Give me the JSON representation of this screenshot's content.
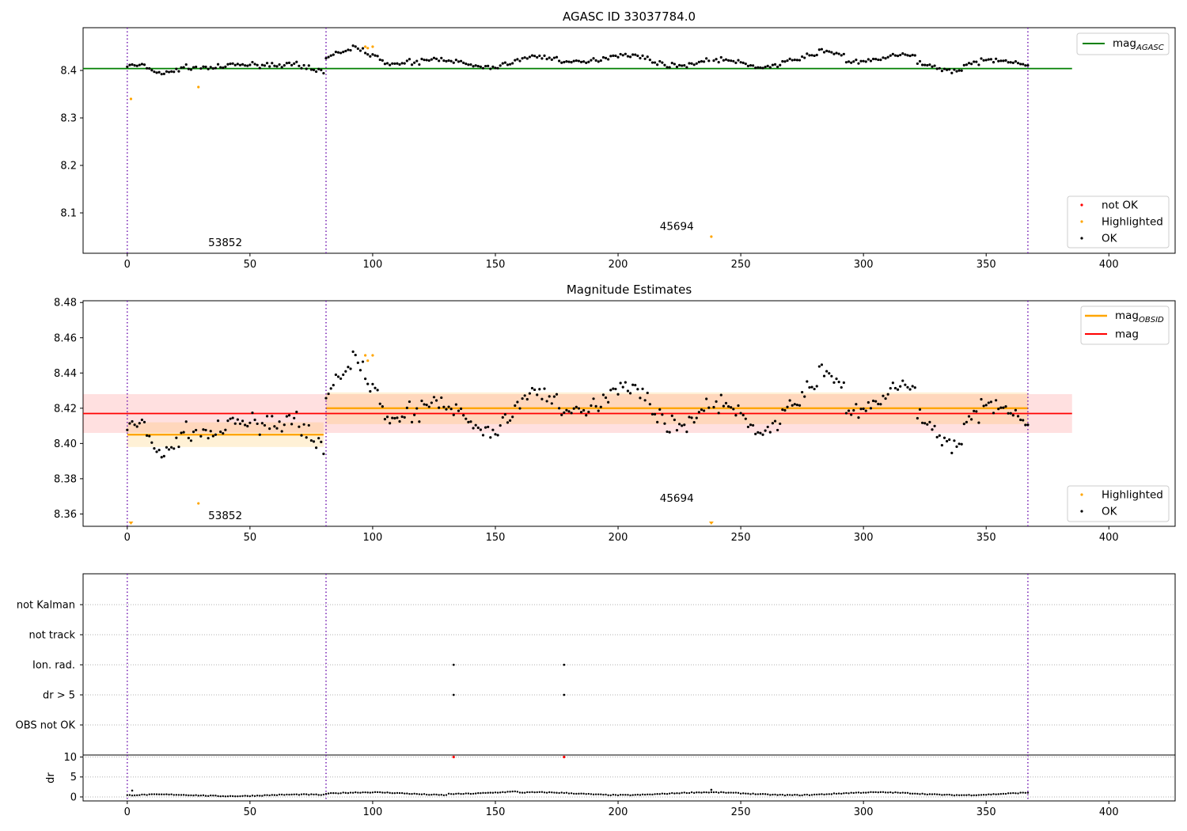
{
  "chart_data": [
    {
      "type": "scatter",
      "title": "AGASC ID 33037784.0",
      "xlim": [
        -18,
        427
      ],
      "ylim": [
        8.015,
        8.49
      ],
      "xticks": [
        0,
        50,
        100,
        150,
        200,
        250,
        300,
        350,
        400
      ],
      "yticks": [
        8.1,
        8.2,
        8.3,
        8.4
      ],
      "ytick_labels": [
        "8.1",
        "8.2",
        "8.3",
        "8.4"
      ],
      "obs_boundaries": [
        0,
        81,
        367
      ],
      "annotations": [
        {
          "text": "53852",
          "x": 33,
          "y": 8.03
        },
        {
          "text": "45694",
          "x": 217,
          "y": 8.064
        }
      ],
      "mag_agasc": {
        "label": "mag",
        "subscript": "AGASC",
        "value": 8.404,
        "x_range": [
          -18,
          385
        ],
        "color": "#008000"
      },
      "series": [
        {
          "name": "not OK",
          "color": "#ff0000",
          "x": [],
          "y": []
        },
        {
          "name": "Highlighted",
          "color": "#ffa500",
          "x": [
            1.5,
            29,
            97,
            98,
            100,
            238
          ],
          "y": [
            8.34,
            8.365,
            8.45,
            8.447,
            8.45,
            8.05
          ]
        },
        {
          "name": "OK",
          "color": "#000000",
          "x": [],
          "y": []
        }
      ],
      "legend_line_position": "upper right",
      "legend_points_position": "lower right"
    },
    {
      "type": "scatter",
      "title": "Magnitude Estimates",
      "xlim": [
        -18,
        427
      ],
      "ylim": [
        8.353,
        8.481
      ],
      "xticks": [
        0,
        50,
        100,
        150,
        200,
        250,
        300,
        350,
        400
      ],
      "yticks": [
        8.36,
        8.38,
        8.4,
        8.42,
        8.44,
        8.46,
        8.48
      ],
      "ytick_labels": [
        "8.36",
        "8.38",
        "8.40",
        "8.42",
        "8.44",
        "8.46",
        "8.48"
      ],
      "obs_boundaries": [
        0,
        81,
        367
      ],
      "annotations": [
        {
          "text": "53852",
          "x": 33,
          "y": 8.357
        },
        {
          "text": "45694",
          "x": 217,
          "y": 8.367
        }
      ],
      "mag_obsid": {
        "label": "mag",
        "subscript": "OBSID",
        "color": "#ffa500",
        "segments": [
          {
            "x": [
              0,
              80
            ],
            "value": 8.405,
            "band": [
              8.398,
              8.412
            ]
          },
          {
            "x": [
              81,
              367
            ],
            "value": 8.42,
            "band": [
              8.411,
              8.429
            ]
          }
        ]
      },
      "mag": {
        "label": "mag",
        "value": 8.417,
        "band": [
          8.406,
          8.428
        ],
        "x_range": [
          -18,
          385
        ],
        "color": "#ff0000"
      },
      "series": [
        {
          "name": "Highlighted",
          "color": "#ffa500",
          "x": [
            1.5,
            29,
            97,
            98,
            100,
            238
          ],
          "y": [
            8.354,
            8.366,
            8.45,
            8.447,
            8.45,
            8.354
          ]
        },
        {
          "name": "OK",
          "color": "#000000",
          "x": [],
          "y": []
        }
      ],
      "legend_line_position": "upper right",
      "legend_points_position": "lower right"
    },
    {
      "type": "scatter",
      "title": "",
      "xlim": [
        -18,
        427
      ],
      "flag_rows": [
        "not Kalman",
        "not track",
        "Ion. rad.",
        "dr > 5",
        "OBS not OK"
      ],
      "flag_points": [
        {
          "row": "Ion. rad.",
          "x": [
            133,
            178
          ]
        },
        {
          "row": "dr > 5",
          "x": [
            133,
            178
          ]
        }
      ],
      "obs_boundaries": [
        0,
        81,
        367
      ],
      "xticks": [
        0,
        50,
        100,
        150,
        200,
        250,
        300,
        350,
        400
      ]
    },
    {
      "type": "scatter",
      "title": "",
      "ylabel": "dr",
      "xlim": [
        -18,
        427
      ],
      "ylim": [
        -1,
        10.5
      ],
      "yticks": [
        0,
        5,
        10
      ],
      "ytick_labels": [
        "0",
        "5",
        "10"
      ],
      "xticks": [
        0,
        50,
        100,
        150,
        200,
        250,
        300,
        350,
        400
      ],
      "xtick_labels": [
        "0",
        "50",
        "100",
        "150",
        "200",
        "250",
        "300",
        "350",
        "400"
      ],
      "obs_boundaries": [
        0,
        81,
        367
      ],
      "high_points": {
        "color": "#ff0000",
        "x": [
          133,
          178
        ],
        "y": [
          10,
          10
        ]
      },
      "spikes": {
        "x": [
          2,
          238
        ],
        "y": [
          1.6,
          1.8
        ]
      }
    }
  ]
}
